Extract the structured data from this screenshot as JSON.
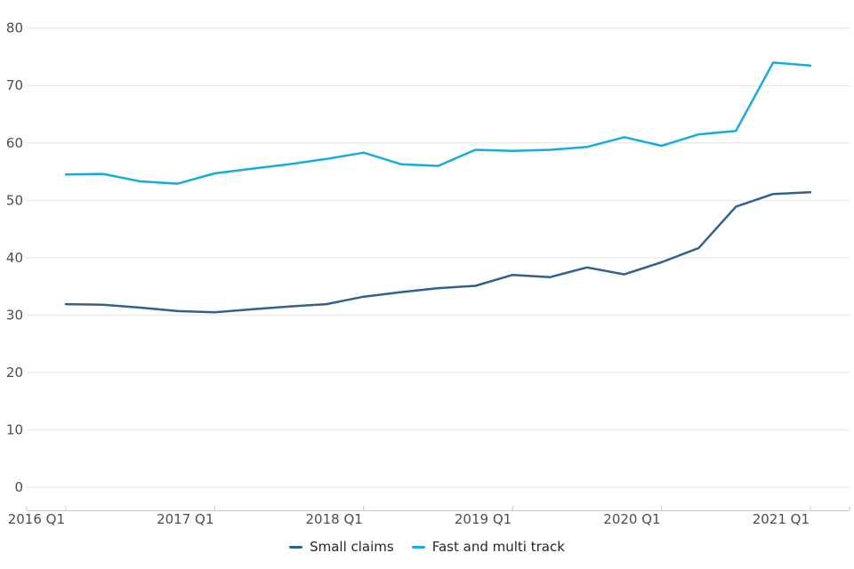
{
  "chart_data": {
    "type": "line",
    "title": "",
    "x": [
      "2016 Q1",
      "2016 Q2",
      "2016 Q3",
      "2016 Q4",
      "2017 Q1",
      "2017 Q2",
      "2017 Q3",
      "2017 Q4",
      "2018 Q1",
      "2018 Q2",
      "2018 Q3",
      "2018 Q4",
      "2019 Q1",
      "2019 Q2",
      "2019 Q3",
      "2019 Q4",
      "2020 Q1",
      "2020 Q2",
      "2020 Q3",
      "2020 Q4",
      "2021 Q1"
    ],
    "series": [
      {
        "name": "Small claims",
        "color": "#33618E",
        "values": [
          31.9,
          31.8,
          31.3,
          30.7,
          30.5,
          31.0,
          31.5,
          31.9,
          33.2,
          34.0,
          34.7,
          35.1,
          37.0,
          36.6,
          38.3,
          37.1,
          39.2,
          41.7,
          48.9,
          51.1,
          51.4
        ]
      },
      {
        "name": "Fast and multi track",
        "color": "#17ACE0",
        "values": [
          54.5,
          54.6,
          53.3,
          52.9,
          54.7,
          55.5,
          56.3,
          57.2,
          58.3,
          56.3,
          56.0,
          58.8,
          58.6,
          58.8,
          59.3,
          61.0,
          59.5,
          61.5,
          62.1,
          74.0,
          73.5
        ]
      }
    ],
    "ylim": [
      0,
      80
    ],
    "yticks": [
      0,
      10,
      20,
      30,
      40,
      50,
      60,
      70,
      80
    ],
    "xticks": [
      "2016 Q1",
      "2017 Q1",
      "2018 Q1",
      "2019 Q1",
      "2020 Q1",
      "2021 Q1"
    ],
    "grid": "horizontal",
    "legend_position": "bottom-center"
  },
  "style_colors": {
    "gridline": "#E4E4E4",
    "axis_line": "#C8C8C8",
    "tick_mark": "#C8C8C8",
    "axis_label": "#4D4D4D",
    "legend_text": "#262626",
    "background": "#FFFFFF"
  }
}
